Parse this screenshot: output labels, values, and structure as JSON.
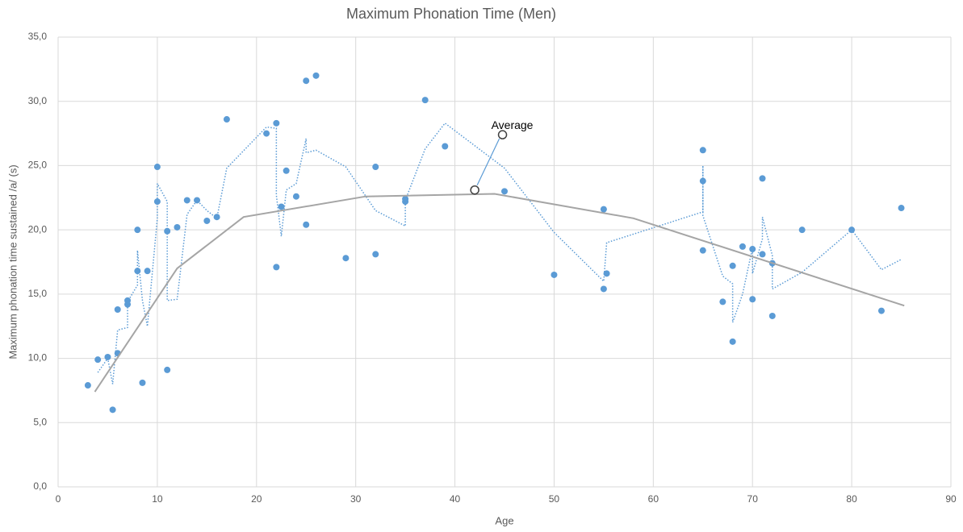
{
  "chart_data": {
    "type": "scatter",
    "title": "Maximum Phonation Time (Men)",
    "x_label": "Age",
    "y_label": "Maximum phonation time sustained /a/ (s)",
    "xlim": [
      0,
      90
    ],
    "xticks": [
      0,
      10,
      20,
      30,
      40,
      50,
      60,
      70,
      80,
      90
    ],
    "ylim": [
      0,
      35
    ],
    "yticks": [
      {
        "value": 0,
        "label": "0,0"
      },
      {
        "value": 5,
        "label": "5,0"
      },
      {
        "value": 10,
        "label": "10,0"
      },
      {
        "value": 15,
        "label": "15,0"
      },
      {
        "value": 20,
        "label": "20,0"
      },
      {
        "value": 25,
        "label": "25,0"
      },
      {
        "value": 30,
        "label": "30,0"
      },
      {
        "value": 35,
        "label": "35,0"
      }
    ],
    "grid": true,
    "series": [
      {
        "mode": "markers",
        "color": "#5b9bd5",
        "x": [
          3,
          4,
          5,
          5.5,
          6,
          6,
          7,
          7,
          8,
          8,
          8.5,
          9,
          10,
          10,
          11,
          11,
          12,
          13,
          14,
          15,
          16,
          17,
          21,
          22,
          22,
          22.5,
          23,
          24,
          25,
          25,
          26,
          29,
          32,
          32,
          35,
          35,
          37,
          39,
          45,
          50,
          55,
          55,
          55.3,
          65,
          65,
          65,
          67,
          68,
          68,
          69,
          70,
          70,
          71,
          71,
          72,
          72,
          75,
          80,
          83,
          85
        ],
        "values": [
          7.9,
          9.9,
          10.1,
          6.0,
          13.8,
          10.4,
          14.5,
          14.2,
          20.0,
          16.8,
          8.1,
          16.8,
          24.9,
          22.2,
          19.9,
          9.1,
          20.2,
          22.3,
          22.3,
          20.7,
          21.0,
          28.6,
          27.5,
          28.3,
          17.1,
          21.8,
          24.6,
          22.6,
          31.6,
          20.4,
          32.0,
          17.8,
          24.9,
          18.1,
          22.4,
          22.2,
          30.1,
          26.5,
          23.0,
          16.5,
          21.6,
          15.4,
          16.6,
          26.2,
          23.8,
          18.4,
          14.4,
          17.2,
          11.3,
          18.7,
          18.5,
          14.6,
          24.0,
          18.1,
          17.4,
          13.3,
          20.0,
          20.0,
          13.7,
          21.7
        ]
      },
      {
        "mode": "dotted",
        "color": "#5b9bd5",
        "x": [
          4,
          5,
          5.5,
          6,
          7,
          7,
          8,
          8,
          8.5,
          9,
          10,
          10,
          11,
          11,
          12,
          13,
          14,
          15,
          16,
          17,
          21,
          22,
          22,
          22.5,
          23,
          24,
          25,
          25,
          26,
          29,
          32,
          35,
          35,
          37,
          39,
          45,
          50,
          55,
          55.3,
          65,
          65,
          65,
          67,
          68,
          68,
          69,
          70,
          70,
          71,
          71,
          72,
          72,
          75,
          80,
          83,
          85
        ],
        "values": [
          8.9,
          10.0,
          8.0,
          12.2,
          12.4,
          14.4,
          15.7,
          18.4,
          14.5,
          12.5,
          20.9,
          23.6,
          22.2,
          14.5,
          14.6,
          21.2,
          22.3,
          21.5,
          20.9,
          24.8,
          28.0,
          27.9,
          22.7,
          19.5,
          23.1,
          23.6,
          27.1,
          26.0,
          26.2,
          24.9,
          21.5,
          20.3,
          22.3,
          26.3,
          28.3,
          24.8,
          19.8,
          16.0,
          19.0,
          21.4,
          25.0,
          21.1,
          16.4,
          15.8,
          12.8,
          15.0,
          18.6,
          16.6,
          19.3,
          21.0,
          18.0,
          15.4,
          16.7,
          20.0,
          16.9,
          17.7
        ]
      },
      {
        "mode": "line",
        "color": "#a5a5a5",
        "x": [
          3.7,
          12,
          18.7,
          31,
          44,
          58,
          85.3
        ],
        "values": [
          7.4,
          17.0,
          21.0,
          22.6,
          22.8,
          20.9,
          14.1
        ]
      }
    ],
    "annotation": {
      "text": "Average",
      "x": 44.8,
      "y": 27.4,
      "target_x": 42,
      "target_y": 23.1
    }
  }
}
